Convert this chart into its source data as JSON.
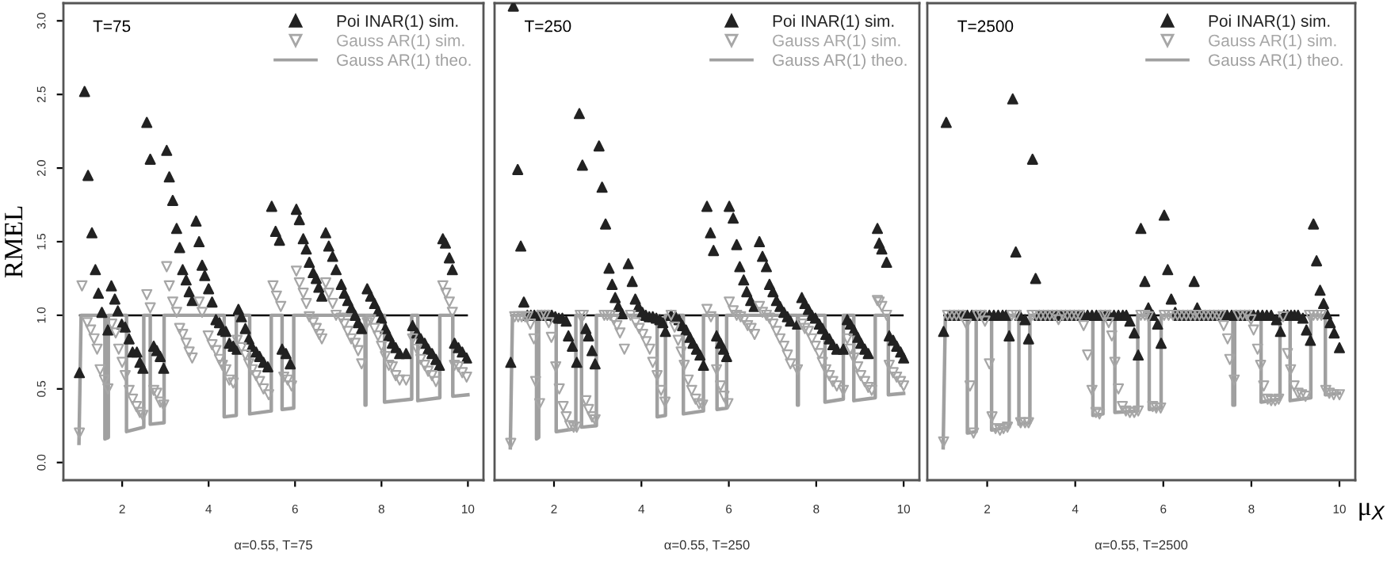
{
  "chart_data": [
    {
      "type": "scatter",
      "xlabel": "α=0.55, T=75",
      "ylabel": "RMEL",
      "annotations": [
        "T=75"
      ],
      "xlim": [
        0.64,
        10.36
      ],
      "ylim": [
        -0.12,
        3.12
      ],
      "xticks": [
        2,
        4,
        6,
        8,
        10
      ],
      "yticks": [
        {
          "value": 0,
          "label": "0.0"
        },
        0.5,
        {
          "value": 1,
          "label": "1.0"
        },
        1.5,
        {
          "value": 2,
          "label": "2.0"
        },
        2.5,
        {
          "value": 3,
          "label": "3.0"
        }
      ],
      "grid": false,
      "legend": "top right",
      "ref_lines": [
        {
          "axis": "y",
          "value": 1,
          "color": "#000000"
        }
      ],
      "series": [
        {
          "name": "Poi INAR(1) sim.",
          "type": "scatter",
          "marker": "triangle",
          "color": "#222222",
          "x": [
            1.01,
            1.13,
            1.21,
            1.3,
            1.38,
            1.45,
            1.53,
            1.67,
            1.75,
            1.83,
            1.9,
            1.99,
            2.07,
            2.16,
            2.24,
            2.34,
            2.41,
            2.48,
            2.57,
            2.65,
            2.73,
            2.8,
            2.88,
            2.96,
            3.03,
            3.09,
            3.17,
            3.26,
            3.33,
            3.4,
            3.48,
            3.55,
            3.62,
            3.71,
            3.78,
            3.85,
            3.91,
            4.0,
            4.08,
            4.17,
            4.25,
            4.32,
            4.4,
            4.48,
            4.57,
            4.66,
            4.69,
            4.76,
            4.85,
            4.93,
            5.0,
            5.1,
            5.18,
            5.27,
            5.37,
            5.46,
            5.55,
            5.64,
            5.7,
            5.79,
            5.89,
            6.03,
            6.1,
            6.19,
            6.26,
            6.33,
            6.42,
            6.49,
            6.55,
            6.62,
            6.71,
            6.78,
            6.87,
            6.95,
            7.07,
            7.14,
            7.22,
            7.3,
            7.39,
            7.46,
            7.54,
            7.67,
            7.75,
            7.84,
            7.92,
            8.0,
            8.09,
            8.17,
            8.25,
            8.33,
            8.42,
            8.57,
            8.72,
            8.82,
            8.91,
            9.0,
            9.08,
            9.17,
            9.26,
            9.34,
            9.42,
            9.48,
            9.57,
            9.64,
            9.69,
            9.78,
            9.87,
            9.97
          ],
          "values": [
            0.61,
            2.52,
            1.95,
            1.56,
            1.31,
            1.15,
            1.02,
            0.9,
            1.2,
            1.11,
            1.03,
            0.94,
            0.92,
            0.84,
            0.75,
            0.75,
            0.68,
            0.64,
            2.31,
            2.06,
            0.79,
            0.76,
            0.72,
            0.64,
            2.12,
            1.94,
            1.78,
            1.59,
            1.46,
            1.31,
            1.24,
            1.16,
            1.1,
            1.64,
            1.5,
            1.34,
            1.27,
            1.18,
            1.09,
            0.97,
            0.95,
            0.9,
            0.89,
            0.81,
            0.79,
            0.77,
            1.04,
            0.99,
            0.91,
            0.84,
            0.79,
            0.75,
            0.72,
            0.68,
            0.65,
            1.74,
            1.57,
            1.51,
            0.77,
            0.74,
            0.67,
            1.72,
            1.65,
            1.52,
            1.45,
            1.36,
            1.29,
            1.25,
            1.19,
            1.13,
            1.56,
            1.47,
            1.4,
            1.31,
            1.21,
            1.15,
            1.1,
            1.05,
            1.0,
            0.95,
            0.91,
            1.18,
            1.13,
            1.08,
            1.03,
            0.98,
            0.91,
            0.86,
            0.81,
            0.78,
            0.74,
            0.74,
            0.93,
            0.88,
            0.84,
            0.81,
            0.77,
            0.74,
            0.7,
            0.66,
            1.52,
            1.49,
            1.39,
            1.31,
            0.81,
            0.78,
            0.75,
            0.71
          ]
        },
        {
          "name": "Gauss AR(1) sim.",
          "type": "scatter",
          "marker": "triangle-down",
          "color": "#a6a6a6",
          "x": [
            1.01,
            1.07,
            1.19,
            1.27,
            1.35,
            1.42,
            1.49,
            1.59,
            1.67,
            1.76,
            1.85,
            1.92,
            2.0,
            2.07,
            2.16,
            2.24,
            2.33,
            2.41,
            2.48,
            2.57,
            2.65,
            2.73,
            2.8,
            2.88,
            2.96,
            3.03,
            3.09,
            3.17,
            3.26,
            3.33,
            3.4,
            3.48,
            3.55,
            3.62,
            3.78,
            3.85,
            3.99,
            4.08,
            4.17,
            4.25,
            4.32,
            4.4,
            4.48,
            4.57,
            4.66,
            4.76,
            4.85,
            4.93,
            5.01,
            5.1,
            5.18,
            5.27,
            5.39,
            5.49,
            5.57,
            5.67,
            5.74,
            5.83,
            5.92,
            6.03,
            6.1,
            6.19,
            6.26,
            6.33,
            6.42,
            6.49,
            6.56,
            6.62,
            6.71,
            6.78,
            6.87,
            6.95,
            7.07,
            7.14,
            7.22,
            7.3,
            7.39,
            7.46,
            7.54,
            7.67,
            7.75,
            7.84,
            7.92,
            8.0,
            8.09,
            8.17,
            8.25,
            8.33,
            8.42,
            8.57,
            8.72,
            8.82,
            8.91,
            9.0,
            9.08,
            9.17,
            9.26,
            9.42,
            9.49,
            9.57,
            9.64,
            9.69,
            9.78,
            9.87,
            9.97
          ],
          "values": [
            0.2,
            1.2,
            0.95,
            0.9,
            0.84,
            0.77,
            0.63,
            0.56,
            0.5,
            0.94,
            0.88,
            0.77,
            0.68,
            0.59,
            0.49,
            0.43,
            0.38,
            0.34,
            0.32,
            1.14,
            1.05,
            0.49,
            0.47,
            0.41,
            0.39,
            1.33,
            1.2,
            1.09,
            1.02,
            0.91,
            0.87,
            0.81,
            0.75,
            0.71,
            1.09,
            1.02,
            0.86,
            0.8,
            0.76,
            0.7,
            0.66,
            0.63,
            0.56,
            0.54,
            0.83,
            0.78,
            0.73,
            0.67,
            0.63,
            0.59,
            0.55,
            0.5,
            0.46,
            1.2,
            1.13,
            1.06,
            0.58,
            0.56,
            0.52,
            1.3,
            1.22,
            1.15,
            1.08,
            0.99,
            0.95,
            0.91,
            0.87,
            0.84,
            1.22,
            1.15,
            1.08,
            1.0,
            0.98,
            0.94,
            0.89,
            0.84,
            0.81,
            0.76,
            0.67,
            0.95,
            0.97,
            0.91,
            0.86,
            0.79,
            0.72,
            0.66,
            0.65,
            0.59,
            0.56,
            0.56,
            0.84,
            0.77,
            0.7,
            0.66,
            0.62,
            0.59,
            0.55,
            1.2,
            1.15,
            1.09,
            1.02,
            0.66,
            0.65,
            0.61,
            0.58
          ]
        },
        {
          "name": "Gauss AR(1) theo.",
          "type": "line",
          "line_style": "solid",
          "color": "#a0a0a0",
          "x": [
            1.0,
            1.05,
            1.6,
            1.6,
            1.68,
            1.68,
            2.1,
            2.1,
            2.5,
            2.5,
            2.65,
            2.65,
            2.97,
            2.97,
            4.36,
            4.36,
            4.64,
            4.64,
            4.95,
            4.95,
            5.45,
            5.45,
            5.7,
            5.7,
            5.97,
            5.97,
            7.62,
            7.62,
            7.64,
            7.64,
            8.07,
            8.07,
            8.7,
            8.7,
            8.84,
            8.84,
            9.35,
            9.35,
            9.65,
            9.65,
            10.0
          ],
          "values": [
            0.13,
            1.0,
            1.0,
            0.16,
            0.17,
            1.0,
            1.0,
            0.21,
            0.24,
            1.0,
            1.0,
            0.26,
            0.27,
            1.0,
            1.0,
            0.31,
            0.32,
            1.0,
            1.0,
            0.33,
            0.35,
            1.0,
            1.0,
            0.36,
            0.37,
            1.0,
            1.0,
            0.39,
            0.39,
            1.0,
            1.0,
            0.41,
            0.43,
            1.0,
            1.0,
            0.42,
            0.44,
            1.0,
            1.0,
            0.45,
            0.46
          ]
        }
      ]
    },
    {
      "type": "scatter",
      "xlabel": "α=0.55, T=250",
      "annotations": [
        "T=250"
      ],
      "xlim": [
        0.64,
        10.36
      ],
      "ylim": [
        -0.12,
        3.12
      ],
      "xticks": [
        2,
        4,
        6,
        8,
        10
      ],
      "yticks": [
        0,
        0.5,
        1,
        1.5,
        2,
        2.5,
        3
      ],
      "tick_labels": "x",
      "grid": false,
      "legend": "top right",
      "ref_lines": [
        {
          "axis": "y",
          "value": 1,
          "color": "#000000"
        }
      ],
      "series": [
        {
          "name": "Poi INAR(1) sim.",
          "type": "scatter",
          "marker": "triangle",
          "color": "#222222",
          "x": [
            1.01,
            1.07,
            1.17,
            1.24,
            1.31,
            1.39,
            1.47,
            1.55,
            1.63,
            1.71,
            1.79,
            1.87,
            1.95,
            2.03,
            2.11,
            2.19,
            2.28,
            2.33,
            2.42,
            2.52,
            2.58,
            2.65,
            2.73,
            2.79,
            2.87,
            2.94,
            3.03,
            3.1,
            3.18,
            3.26,
            3.33,
            3.4,
            3.47,
            3.56,
            3.7,
            3.79,
            3.86,
            3.93,
            4.02,
            4.1,
            4.18,
            4.26,
            4.34,
            4.42,
            4.49,
            4.55,
            4.68,
            4.78,
            4.86,
            4.94,
            5.02,
            5.11,
            5.18,
            5.26,
            5.34,
            5.42,
            5.5,
            5.58,
            5.65,
            5.72,
            5.81,
            5.88,
            5.95,
            6.01,
            6.1,
            6.18,
            6.25,
            6.34,
            6.41,
            6.5,
            6.58,
            6.7,
            6.77,
            6.86,
            6.93,
            7.01,
            7.09,
            7.17,
            7.26,
            7.34,
            7.41,
            7.57,
            7.67,
            7.74,
            7.82,
            7.9,
            7.98,
            8.07,
            8.14,
            8.22,
            8.3,
            8.38,
            8.47,
            8.62,
            8.71,
            8.78,
            8.86,
            8.95,
            9.02,
            9.11,
            9.19,
            9.4,
            9.44,
            9.5,
            9.61,
            9.67,
            9.76,
            9.84,
            9.93,
            10.0
          ],
          "values": [
            0.68,
            3.1,
            1.99,
            1.47,
            1.09,
            1.0,
            1.0,
            1.0,
            1.0,
            1.0,
            1.0,
            1.0,
            1.0,
            0.99,
            0.98,
            0.98,
            0.96,
            0.86,
            0.79,
            0.68,
            2.37,
            2.02,
            0.91,
            0.86,
            0.76,
            0.67,
            2.15,
            1.87,
            1.62,
            1.32,
            1.21,
            1.12,
            1.06,
            1.01,
            1.35,
            1.23,
            1.11,
            1.06,
            1.02,
            1.0,
            0.99,
            0.99,
            0.98,
            0.97,
            0.95,
            0.89,
            1.0,
            0.99,
            0.97,
            0.93,
            0.9,
            0.85,
            0.81,
            0.77,
            0.73,
            0.66,
            1.74,
            1.56,
            1.44,
            0.86,
            0.81,
            0.77,
            0.72,
            1.74,
            1.66,
            1.48,
            1.33,
            1.24,
            1.16,
            1.1,
            1.06,
            1.5,
            1.4,
            1.33,
            1.21,
            1.16,
            1.1,
            1.06,
            1.02,
            0.99,
            0.96,
            0.94,
            1.12,
            1.08,
            1.04,
            1.0,
            0.98,
            0.94,
            0.91,
            0.87,
            0.84,
            0.8,
            0.77,
            0.77,
            0.97,
            0.94,
            0.9,
            0.85,
            0.81,
            0.77,
            0.74,
            1.59,
            1.49,
            1.45,
            1.36,
            0.86,
            0.83,
            0.79,
            0.75,
            0.71
          ]
        },
        {
          "name": "Gauss AR(1) sim.",
          "type": "scatter",
          "marker": "triangle-down",
          "color": "#a6a6a6",
          "x": [
            1.01,
            1.1,
            1.18,
            1.26,
            1.34,
            1.4,
            1.46,
            1.54,
            1.58,
            1.67,
            1.72,
            1.8,
            1.88,
            1.94,
            2.04,
            2.12,
            2.21,
            2.28,
            2.36,
            2.45,
            2.52,
            2.6,
            2.67,
            2.73,
            2.79,
            2.87,
            2.94,
            3.15,
            3.22,
            3.29,
            3.37,
            3.44,
            3.51,
            3.61,
            3.75,
            3.87,
            3.95,
            4.03,
            4.11,
            4.19,
            4.26,
            4.36,
            4.45,
            4.54,
            4.68,
            4.76,
            4.84,
            4.91,
            4.98,
            5.07,
            5.15,
            5.24,
            5.32,
            5.4,
            5.5,
            5.59,
            5.72,
            5.81,
            5.89,
            5.98,
            6.01,
            6.1,
            6.18,
            6.27,
            6.35,
            6.43,
            6.51,
            6.59,
            6.7,
            6.77,
            6.86,
            6.93,
            7.01,
            7.09,
            7.17,
            7.26,
            7.34,
            7.41,
            7.57,
            7.67,
            7.74,
            7.82,
            7.9,
            7.98,
            8.07,
            8.14,
            8.22,
            8.3,
            8.38,
            8.47,
            8.62,
            8.71,
            8.78,
            8.86,
            8.95,
            9.02,
            9.11,
            9.19,
            9.27,
            9.4,
            9.44,
            9.5,
            9.61,
            9.67,
            9.76,
            9.84,
            9.93,
            10.0
          ],
          "values": [
            0.13,
            0.99,
            0.99,
            0.99,
            0.99,
            0.99,
            0.94,
            0.84,
            0.55,
            0.4,
            1.0,
            1.0,
            0.95,
            0.85,
            0.65,
            0.5,
            0.38,
            0.31,
            0.25,
            0.24,
            0.24,
            1.0,
            1.0,
            0.42,
            0.36,
            0.31,
            0.29,
            1.0,
            1.0,
            1.0,
            0.97,
            0.93,
            0.88,
            0.77,
            1.0,
            0.95,
            0.91,
            0.87,
            0.82,
            0.77,
            0.68,
            0.59,
            0.49,
            0.41,
            1.0,
            0.92,
            0.83,
            0.75,
            0.66,
            0.56,
            0.49,
            0.43,
            0.4,
            0.39,
            1.04,
            0.99,
            0.63,
            0.52,
            0.45,
            0.4,
            1.09,
            1.03,
            1.0,
            0.99,
            0.97,
            0.93,
            0.91,
            0.87,
            1.06,
            1.02,
            1.0,
            0.98,
            0.94,
            0.89,
            0.84,
            0.79,
            0.73,
            0.67,
            0.63,
            0.94,
            0.91,
            0.89,
            0.84,
            0.79,
            0.74,
            0.68,
            0.63,
            0.59,
            0.55,
            0.52,
            0.49,
            0.84,
            0.77,
            0.71,
            0.65,
            0.59,
            0.55,
            0.51,
            0.49,
            1.1,
            1.09,
            1.06,
            1.0,
            0.66,
            0.61,
            0.58,
            0.55,
            0.52
          ]
        },
        {
          "name": "Gauss AR(1) theo.",
          "type": "line",
          "line_style": "solid",
          "color": "#a0a0a0",
          "x": [
            1.0,
            1.05,
            1.6,
            1.6,
            1.65,
            1.65,
            2.05,
            2.05,
            2.5,
            2.5,
            2.63,
            2.63,
            2.97,
            2.97,
            4.36,
            4.36,
            4.55,
            4.55,
            4.96,
            4.96,
            5.42,
            5.42,
            5.73,
            5.73,
            5.95,
            5.95,
            7.57,
            7.57,
            7.59,
            7.59,
            8.2,
            8.2,
            8.62,
            8.62,
            8.86,
            8.86,
            9.35,
            9.35,
            9.65,
            9.65,
            10.0
          ],
          "values": [
            0.1,
            1.0,
            1.0,
            0.16,
            0.17,
            1.0,
            1.0,
            0.21,
            0.23,
            1.0,
            1.0,
            0.24,
            0.25,
            1.0,
            1.0,
            0.31,
            0.32,
            1.0,
            1.0,
            0.33,
            0.35,
            1.0,
            1.0,
            0.36,
            0.37,
            1.0,
            1.0,
            0.39,
            0.39,
            1.0,
            1.0,
            0.41,
            0.43,
            1.0,
            1.0,
            0.42,
            0.44,
            1.0,
            1.0,
            0.46,
            0.47
          ]
        }
      ]
    },
    {
      "type": "scatter",
      "xlabel": "α=0.55, T=2500",
      "annotations": [
        "T=2500",
        "μ$_{X}$"
      ],
      "xlim": [
        0.64,
        10.36
      ],
      "ylim": [
        -0.12,
        3.12
      ],
      "xticks": [
        2,
        4,
        6,
        8,
        10
      ],
      "yticks": [
        0,
        0.5,
        1,
        1.5,
        2,
        2.5,
        3
      ],
      "tick_labels": "x",
      "grid": false,
      "legend": "top right",
      "ref_lines": [
        {
          "axis": "y",
          "value": 1,
          "color": "#000000"
        }
      ],
      "series": [
        {
          "name": "Poi INAR(1) sim.",
          "type": "scatter",
          "marker": "triangle",
          "color": "#222222",
          "x": [
            1.01,
            1.07,
            1.15,
            1.25,
            1.35,
            1.45,
            1.55,
            1.65,
            1.75,
            1.85,
            1.95,
            2.05,
            2.15,
            2.25,
            2.35,
            2.43,
            2.5,
            2.58,
            2.65,
            2.74,
            2.86,
            2.94,
            3.03,
            3.1,
            3.18,
            3.28,
            3.38,
            3.48,
            3.58,
            3.68,
            3.78,
            3.88,
            3.98,
            4.08,
            4.18,
            4.28,
            4.38,
            4.48,
            4.58,
            4.68,
            4.78,
            4.88,
            4.98,
            5.08,
            5.16,
            5.24,
            5.34,
            5.43,
            5.49,
            5.58,
            5.66,
            5.76,
            5.87,
            5.95,
            6.02,
            6.1,
            6.18,
            6.27,
            6.35,
            6.45,
            6.55,
            6.63,
            6.7,
            6.77,
            6.85,
            6.95,
            7.05,
            7.15,
            7.25,
            7.35,
            7.45,
            7.55,
            7.65,
            7.75,
            7.85,
            7.95,
            8.05,
            8.15,
            8.25,
            8.35,
            8.45,
            8.57,
            8.66,
            8.74,
            8.82,
            8.9,
            8.98,
            9.06,
            9.17,
            9.25,
            9.34,
            9.41,
            9.48,
            9.56,
            9.64,
            9.71,
            9.79,
            9.88,
            10.0
          ],
          "values": [
            0.89,
            2.31,
            1.0,
            1.0,
            1.0,
            1.0,
            1.0,
            1.0,
            1.0,
            1.0,
            1.0,
            1.0,
            1.0,
            1.0,
            1.0,
            1.0,
            0.86,
            2.47,
            1.43,
            1.0,
            0.97,
            0.84,
            2.06,
            1.25,
            1.0,
            1.0,
            1.0,
            1.0,
            1.0,
            1.0,
            1.0,
            1.0,
            1.0,
            1.0,
            1.0,
            1.0,
            1.0,
            1.0,
            1.0,
            1.0,
            1.0,
            1.0,
            1.0,
            1.0,
            1.0,
            0.96,
            0.88,
            0.73,
            1.59,
            1.23,
            1.05,
            1.0,
            0.94,
            0.81,
            1.68,
            1.31,
            1.11,
            1.02,
            1.0,
            1.0,
            1.0,
            1.0,
            1.23,
            1.05,
            1.0,
            1.0,
            1.0,
            1.0,
            1.0,
            1.0,
            1.0,
            1.0,
            1.0,
            1.0,
            1.0,
            1.0,
            1.0,
            1.0,
            1.0,
            1.0,
            1.0,
            0.97,
            0.89,
            1.0,
            1.0,
            1.0,
            1.0,
            1.0,
            0.98,
            0.9,
            0.83,
            1.62,
            1.37,
            1.17,
            1.08,
            1.01,
            0.95,
            0.88,
            0.78
          ]
        },
        {
          "name": "Gauss AR(1) sim.",
          "type": "scatter",
          "marker": "triangle-down",
          "color": "#a6a6a6",
          "x": [
            1.01,
            1.1,
            1.2,
            1.3,
            1.4,
            1.53,
            1.61,
            1.69,
            1.78,
            1.87,
            1.95,
            2.05,
            2.11,
            2.19,
            2.29,
            2.37,
            2.46,
            2.56,
            2.66,
            2.76,
            2.86,
            2.94,
            3.02,
            3.12,
            3.22,
            3.32,
            3.42,
            3.52,
            3.62,
            3.72,
            3.82,
            3.92,
            4.02,
            4.1,
            4.19,
            4.28,
            4.38,
            4.47,
            4.55,
            4.64,
            4.7,
            4.76,
            4.83,
            4.9,
            4.98,
            5.07,
            5.15,
            5.24,
            5.34,
            5.43,
            5.49,
            5.58,
            5.66,
            5.76,
            5.84,
            5.94,
            6.02,
            6.12,
            6.22,
            6.32,
            6.42,
            6.52,
            6.62,
            6.72,
            6.82,
            6.92,
            7.02,
            7.12,
            7.22,
            7.3,
            7.37,
            7.46,
            7.51,
            7.61,
            7.7,
            7.8,
            7.9,
            7.99,
            8.05,
            8.14,
            8.21,
            8.28,
            8.37,
            8.45,
            8.54,
            8.62,
            8.72,
            8.82,
            8.89,
            8.97,
            9.06,
            9.14,
            9.23,
            9.32,
            9.41,
            9.5,
            9.59,
            9.69,
            9.77,
            9.87,
            10.0
          ],
          "values": [
            0.14,
            1.0,
            1.0,
            1.0,
            1.0,
            0.94,
            0.52,
            0.2,
            1.0,
            1.0,
            0.96,
            0.67,
            0.31,
            0.23,
            0.22,
            0.23,
            0.24,
            1.0,
            1.0,
            0.27,
            0.27,
            0.27,
            1.0,
            1.0,
            1.0,
            1.0,
            1.0,
            1.0,
            0.97,
            1.0,
            1.0,
            1.0,
            1.0,
            1.0,
            0.93,
            0.73,
            0.49,
            0.34,
            0.33,
            1.0,
            1.0,
            0.95,
            0.86,
            0.68,
            0.5,
            0.38,
            0.35,
            0.34,
            0.34,
            0.35,
            1.0,
            1.0,
            0.99,
            0.38,
            0.37,
            0.37,
            1.0,
            1.0,
            1.0,
            1.0,
            1.0,
            1.0,
            1.0,
            1.0,
            1.0,
            1.0,
            1.0,
            1.0,
            1.0,
            1.0,
            0.93,
            0.84,
            0.7,
            0.56,
            1.0,
            1.0,
            1.0,
            0.97,
            0.9,
            0.77,
            0.66,
            0.52,
            0.43,
            0.42,
            0.42,
            0.43,
            0.99,
            0.74,
            0.63,
            0.52,
            0.47,
            0.46,
            0.45,
            1.0,
            1.0,
            1.0,
            1.0,
            0.49,
            0.47,
            0.46,
            0.46
          ]
        },
        {
          "name": "Gauss AR(1) theo.",
          "type": "line",
          "line_style": "solid",
          "color": "#a0a0a0",
          "x": [
            1.0,
            1.05,
            1.55,
            1.55,
            1.75,
            1.75,
            2.1,
            2.1,
            2.5,
            2.5,
            2.72,
            2.72,
            2.97,
            2.97,
            4.4,
            4.4,
            4.63,
            4.63,
            4.9,
            4.9,
            5.42,
            5.42,
            5.68,
            5.68,
            5.95,
            5.95,
            7.58,
            7.58,
            7.62,
            7.62,
            8.22,
            8.22,
            8.65,
            8.65,
            8.88,
            8.88,
            9.35,
            9.35,
            9.68,
            9.68,
            10.0
          ],
          "values": [
            0.1,
            1.0,
            1.0,
            0.2,
            0.21,
            1.0,
            1.0,
            0.22,
            0.24,
            1.0,
            1.0,
            0.26,
            0.27,
            1.0,
            1.0,
            0.32,
            0.33,
            1.0,
            1.0,
            0.34,
            0.35,
            1.0,
            1.0,
            0.36,
            0.37,
            1.0,
            1.0,
            0.39,
            0.39,
            1.0,
            1.0,
            0.41,
            0.43,
            1.0,
            1.0,
            0.42,
            0.44,
            1.0,
            1.0,
            0.46,
            0.47
          ]
        }
      ]
    }
  ]
}
